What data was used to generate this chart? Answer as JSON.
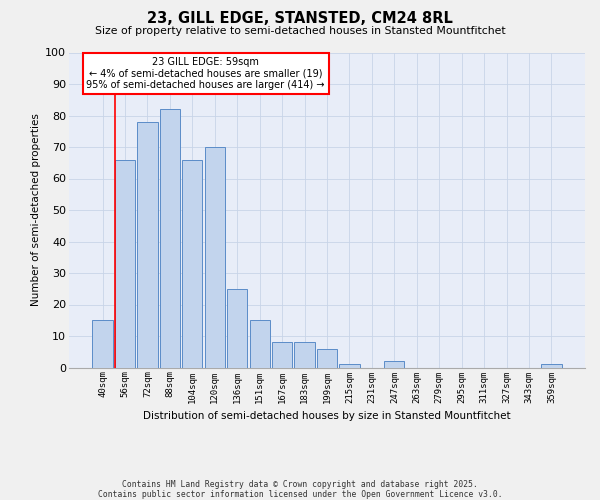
{
  "title": "23, GILL EDGE, STANSTED, CM24 8RL",
  "subtitle": "Size of property relative to semi-detached houses in Stansted Mountfitchet",
  "xlabel": "Distribution of semi-detached houses by size in Stansted Mountfitchet",
  "ylabel": "Number of semi-detached properties",
  "annotation_title": "23 GILL EDGE: 59sqm",
  "annotation_line1": "← 4% of semi-detached houses are smaller (19)",
  "annotation_line2": "95% of semi-detached houses are larger (414) →",
  "categories": [
    "40sqm",
    "56sqm",
    "72sqm",
    "88sqm",
    "104sqm",
    "120sqm",
    "136sqm",
    "151sqm",
    "167sqm",
    "183sqm",
    "199sqm",
    "215sqm",
    "231sqm",
    "247sqm",
    "263sqm",
    "279sqm",
    "295sqm",
    "311sqm",
    "327sqm",
    "343sqm",
    "359sqm"
  ],
  "values": [
    15,
    66,
    78,
    82,
    66,
    70,
    25,
    15,
    8,
    8,
    6,
    1,
    0,
    2,
    0,
    0,
    0,
    0,
    0,
    0,
    1
  ],
  "bar_color": "#c2d4ed",
  "bar_edge_color": "#5b8cc8",
  "red_line_x": 0.5,
  "ylim": [
    0,
    100
  ],
  "yticks": [
    0,
    10,
    20,
    30,
    40,
    50,
    60,
    70,
    80,
    90,
    100
  ],
  "grid_color": "#c8d4e8",
  "plot_bg_color": "#e8edf8",
  "fig_bg_color": "#f0f0f0",
  "footer_line1": "Contains HM Land Registry data © Crown copyright and database right 2025.",
  "footer_line2": "Contains public sector information licensed under the Open Government Licence v3.0."
}
